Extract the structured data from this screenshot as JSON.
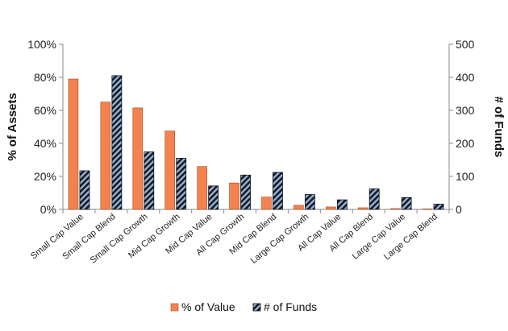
{
  "chart_data": {
    "type": "bar",
    "categories": [
      "Small Cap Value",
      "Small Cap Blend",
      "Small Cap Growth",
      "Mid Cap Growth",
      "Mid Cap Value",
      "All Cap Growth",
      "Mid Cap Blend",
      "Large Cap Growth",
      "All Cap Value",
      "All Cap Blend",
      "Large Cap Value",
      "Large Cap Blend"
    ],
    "series": [
      {
        "name": "% of Value",
        "axis": "left",
        "values": [
          79,
          65,
          61.5,
          47.5,
          26,
          16,
          7.5,
          2.5,
          1.5,
          1,
          0.5,
          0.3
        ],
        "color": "#F4824F"
      },
      {
        "name": "# of Funds",
        "axis": "right",
        "values": [
          117,
          405,
          174,
          155,
          71,
          104,
          112,
          45,
          29,
          62,
          36,
          16
        ],
        "color": "#1a1a1a",
        "hatch_color": "#8EB4E3"
      }
    ],
    "left_axis": {
      "label": "% of Assets",
      "ylim": [
        0,
        100
      ],
      "ticks": [
        "0%",
        "20%",
        "40%",
        "60%",
        "80%",
        "100%"
      ]
    },
    "right_axis": {
      "label": "# of Funds",
      "ylim": [
        0,
        500
      ],
      "ticks": [
        "0",
        "100",
        "200",
        "300",
        "400",
        "500"
      ]
    },
    "legend": {
      "position": "bottom"
    },
    "grid": false
  }
}
